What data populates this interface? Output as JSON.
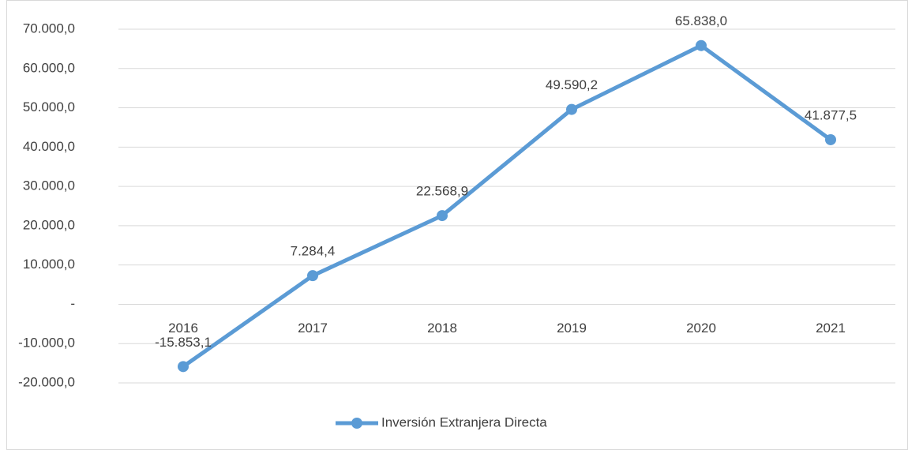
{
  "chart_data": {
    "type": "line",
    "categories": [
      "2016",
      "2017",
      "2018",
      "2019",
      "2020",
      "2021"
    ],
    "series": [
      {
        "name": "Inversión Extranjera Directa",
        "color": "#5b9bd5",
        "values": [
          -15853.1,
          7284.4,
          22568.9,
          49590.2,
          65838.0,
          41877.5
        ],
        "value_labels": [
          "-15.853,1",
          "7.284,4",
          "22.568,9",
          "49.590,2",
          "65.838,0",
          "41.877,5"
        ]
      }
    ],
    "ylim": [
      -20000,
      70000
    ],
    "yticks": [
      {
        "value": -20000,
        "label": "-20.000,0"
      },
      {
        "value": -10000,
        "label": "-10.000,0"
      },
      {
        "value": 0,
        "label": "-"
      },
      {
        "value": 10000,
        "label": "10.000,0"
      },
      {
        "value": 20000,
        "label": "20.000,0"
      },
      {
        "value": 30000,
        "label": "30.000,0"
      },
      {
        "value": 40000,
        "label": "40.000,0"
      },
      {
        "value": 50000,
        "label": "50.000,0"
      },
      {
        "value": 60000,
        "label": "60.000,0"
      },
      {
        "value": 70000,
        "label": "70.000,0"
      }
    ],
    "grid": true,
    "legend": "bottom"
  }
}
